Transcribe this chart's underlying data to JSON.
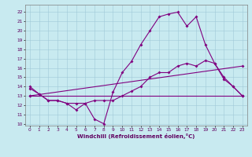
{
  "xlabel": "Windchill (Refroidissement éolien,°C)",
  "bg_color": "#c8eaf0",
  "line_color": "#800080",
  "grid_color": "#a0c8d8",
  "spine_color": "#808080",
  "xlim": [
    -0.5,
    23.5
  ],
  "ylim": [
    9.8,
    22.8
  ],
  "xticks": [
    0,
    1,
    2,
    3,
    4,
    5,
    6,
    7,
    8,
    9,
    10,
    11,
    12,
    13,
    14,
    15,
    16,
    17,
    18,
    19,
    20,
    21,
    22,
    23
  ],
  "yticks": [
    10,
    11,
    12,
    13,
    14,
    15,
    16,
    17,
    18,
    19,
    20,
    21,
    22
  ],
  "curve1_x": [
    0,
    1,
    2,
    3,
    4,
    5,
    6,
    7,
    8,
    9,
    10,
    11,
    12,
    13,
    14,
    15,
    16,
    17,
    18,
    19,
    20,
    21,
    22,
    23
  ],
  "curve1_y": [
    14.0,
    13.2,
    12.5,
    12.5,
    12.2,
    11.5,
    12.2,
    10.5,
    10.0,
    13.4,
    15.5,
    16.7,
    18.5,
    20.0,
    21.5,
    21.8,
    22.0,
    20.5,
    21.5,
    18.5,
    16.5,
    15.0,
    14.0,
    13.0
  ],
  "curve2_x": [
    0,
    23
  ],
  "curve2_y": [
    13.0,
    16.2
  ],
  "curve3_x": [
    0,
    23
  ],
  "curve3_y": [
    13.0,
    13.0
  ],
  "curve4_x": [
    0,
    1,
    2,
    3,
    4,
    5,
    6,
    7,
    8,
    9,
    10,
    11,
    12,
    13,
    14,
    15,
    16,
    17,
    18,
    19,
    20,
    21,
    22,
    23
  ],
  "curve4_y": [
    13.8,
    13.2,
    12.5,
    12.5,
    12.2,
    12.2,
    12.2,
    12.5,
    12.5,
    12.5,
    13.0,
    13.5,
    14.0,
    15.0,
    15.5,
    15.5,
    16.2,
    16.5,
    16.2,
    16.8,
    16.5,
    14.8,
    14.0,
    13.0
  ],
  "tick_fontsize": 4.2,
  "xlabel_fontsize": 5.0,
  "lw": 0.8,
  "marker_size": 2.0
}
